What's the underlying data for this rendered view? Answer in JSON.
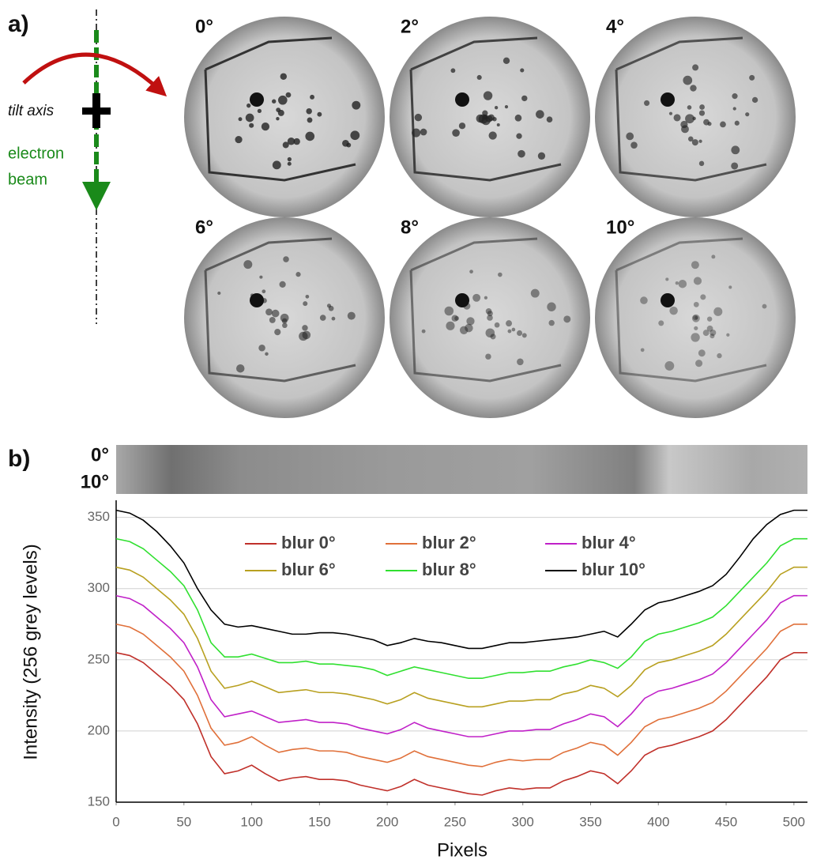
{
  "panel_a": {
    "label": "a)",
    "tilt_axis": "tilt axis",
    "beam_line1": "electron",
    "beam_line2": "beam",
    "images": [
      "0°",
      "2°",
      "4°",
      "6°",
      "8°",
      "10°"
    ]
  },
  "panel_b": {
    "label": "b)",
    "strip_top": "0°",
    "strip_bottom": "10°"
  },
  "chart_data": {
    "type": "line",
    "x_label": "Pixels",
    "y_label": "Intensity (256 grey levels)",
    "x": [
      0,
      10,
      20,
      30,
      40,
      50,
      60,
      70,
      80,
      90,
      100,
      110,
      120,
      130,
      140,
      150,
      160,
      170,
      180,
      190,
      200,
      210,
      220,
      230,
      240,
      250,
      260,
      270,
      280,
      290,
      300,
      310,
      320,
      330,
      340,
      350,
      360,
      370,
      380,
      390,
      400,
      410,
      420,
      430,
      440,
      450,
      460,
      470,
      480,
      490,
      500,
      510
    ],
    "xlim": [
      0,
      510
    ],
    "ylim": [
      150,
      362
    ],
    "xticks": [
      0,
      50,
      100,
      150,
      200,
      250,
      300,
      350,
      400,
      450,
      500
    ],
    "yticks": [
      150,
      200,
      250,
      300,
      350
    ],
    "grid": true,
    "series": [
      {
        "name": "blur 0°",
        "color": "#c0302a",
        "values": [
          255,
          253,
          248,
          240,
          232,
          222,
          205,
          182,
          170,
          172,
          176,
          170,
          165,
          167,
          168,
          166,
          166,
          165,
          162,
          160,
          158,
          161,
          166,
          162,
          160,
          158,
          156,
          155,
          158,
          160,
          159,
          160,
          160,
          165,
          168,
          172,
          170,
          163,
          172,
          183,
          188,
          190,
          193,
          196,
          200,
          208,
          218,
          228,
          238,
          250,
          255,
          255
        ]
      },
      {
        "name": "blur 2°",
        "color": "#e0703a",
        "values": [
          275,
          273,
          268,
          260,
          252,
          242,
          225,
          202,
          190,
          192,
          196,
          190,
          185,
          187,
          188,
          186,
          186,
          185,
          182,
          180,
          178,
          181,
          186,
          182,
          180,
          178,
          176,
          175,
          178,
          180,
          179,
          180,
          180,
          185,
          188,
          192,
          190,
          183,
          192,
          203,
          208,
          210,
          213,
          216,
          220,
          228,
          238,
          248,
          258,
          270,
          275,
          275
        ]
      },
      {
        "name": "blur 4°",
        "color": "#c020c8",
        "values": [
          295,
          293,
          288,
          280,
          272,
          262,
          245,
          222,
          210,
          212,
          214,
          210,
          206,
          207,
          208,
          206,
          206,
          205,
          202,
          200,
          198,
          201,
          206,
          202,
          200,
          198,
          196,
          196,
          198,
          200,
          200,
          201,
          201,
          205,
          208,
          212,
          210,
          203,
          212,
          223,
          228,
          230,
          233,
          236,
          240,
          248,
          258,
          268,
          278,
          290,
          295,
          295
        ]
      },
      {
        "name": "blur 6°",
        "color": "#b8a020",
        "values": [
          315,
          313,
          308,
          300,
          292,
          282,
          265,
          242,
          230,
          232,
          235,
          231,
          227,
          228,
          229,
          227,
          227,
          226,
          224,
          222,
          219,
          222,
          227,
          223,
          221,
          219,
          217,
          217,
          219,
          221,
          221,
          222,
          222,
          226,
          228,
          232,
          230,
          224,
          232,
          243,
          248,
          250,
          253,
          256,
          260,
          268,
          278,
          288,
          298,
          310,
          315,
          315
        ]
      },
      {
        "name": "blur 8°",
        "color": "#30e030",
        "values": [
          335,
          333,
          328,
          320,
          312,
          302,
          285,
          262,
          252,
          252,
          254,
          251,
          248,
          248,
          249,
          247,
          247,
          246,
          245,
          243,
          239,
          242,
          245,
          243,
          241,
          239,
          237,
          237,
          239,
          241,
          241,
          242,
          242,
          245,
          247,
          250,
          248,
          244,
          252,
          263,
          268,
          270,
          273,
          276,
          280,
          288,
          298,
          308,
          318,
          330,
          335,
          335
        ]
      },
      {
        "name": "blur 10°",
        "color": "#000000",
        "values": [
          355,
          353,
          348,
          340,
          330,
          318,
          300,
          285,
          275,
          273,
          274,
          272,
          270,
          268,
          268,
          269,
          269,
          268,
          266,
          264,
          260,
          262,
          265,
          263,
          262,
          260,
          258,
          258,
          260,
          262,
          262,
          263,
          264,
          265,
          266,
          268,
          270,
          266,
          275,
          285,
          290,
          292,
          295,
          298,
          302,
          310,
          322,
          335,
          345,
          352,
          355,
          355
        ]
      }
    ]
  }
}
